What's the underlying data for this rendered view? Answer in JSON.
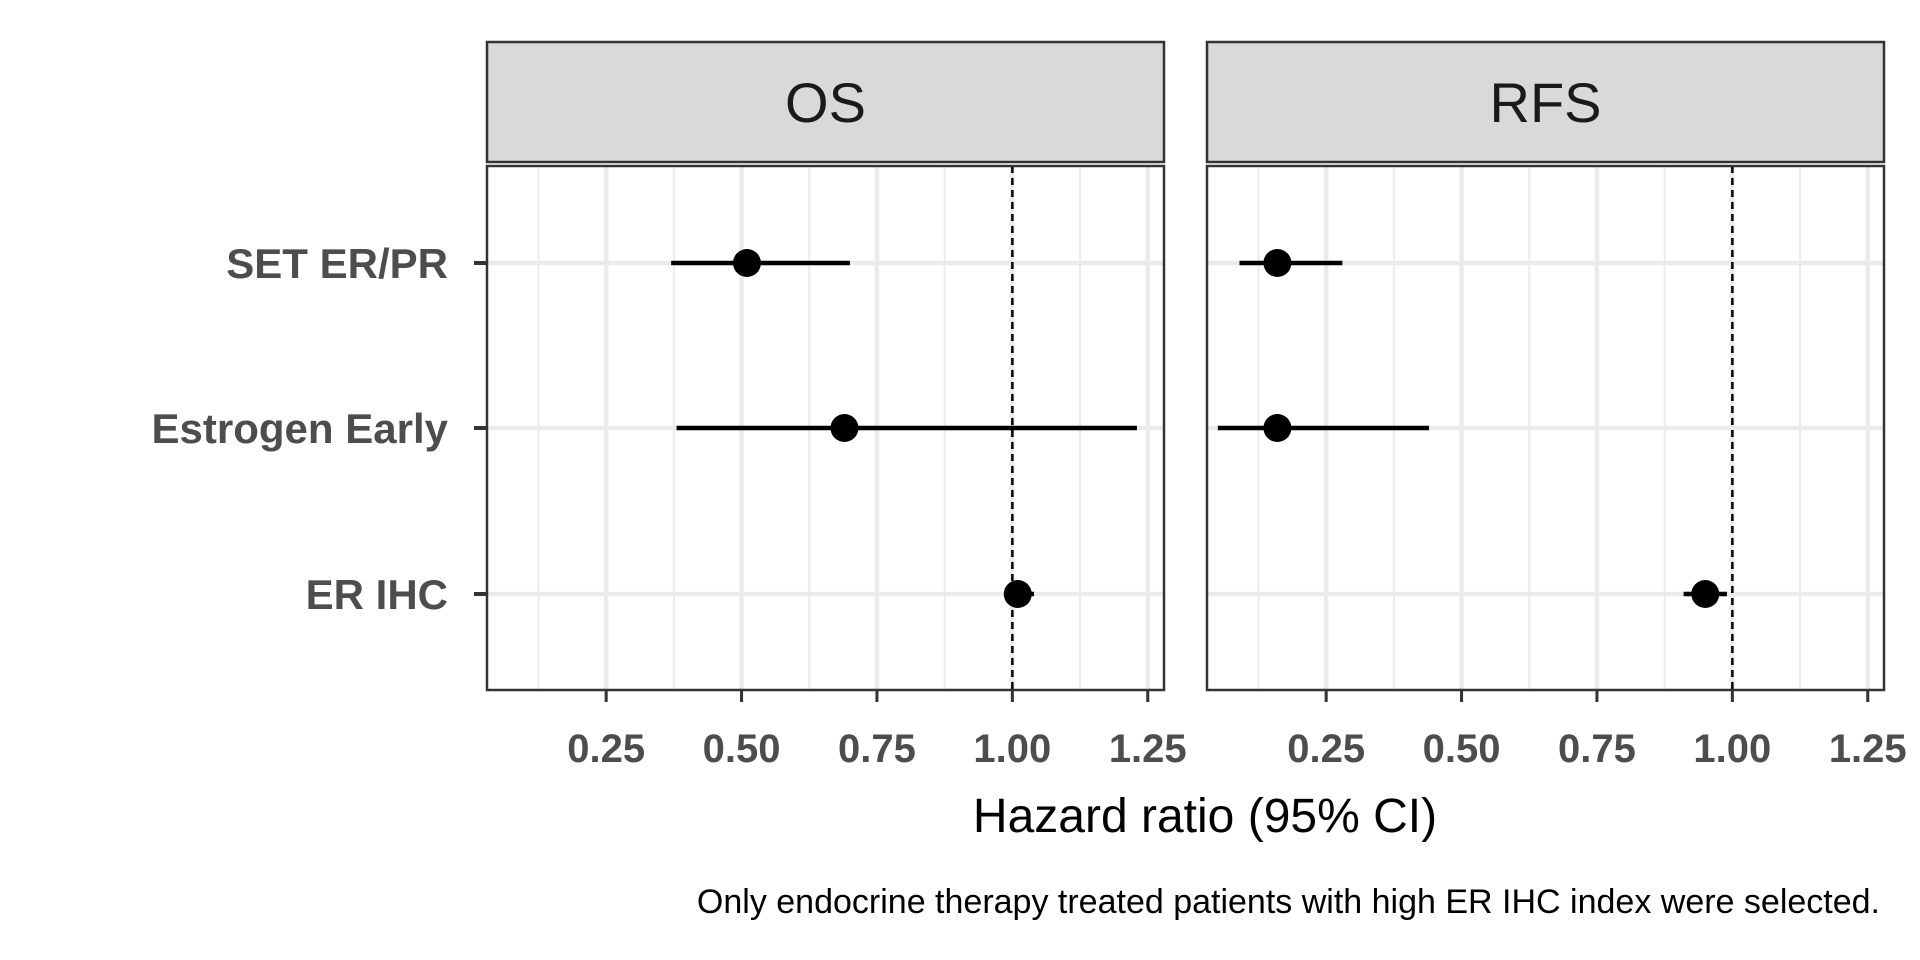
{
  "chart_data": {
    "type": "scatter",
    "subtype": "forest-plot",
    "facets": [
      "OS",
      "RFS"
    ],
    "categories": [
      "SET ER/PR",
      "Estrogen Early",
      "ER IHC"
    ],
    "xlabel": "Hazard ratio (95% CI)",
    "caption": "Only endocrine therapy treated patients with high ER IHC index were selected.",
    "xlim": [
      0.03,
      1.28
    ],
    "x_ticks": [
      0.25,
      0.5,
      0.75,
      1.0,
      1.25
    ],
    "x_tick_labels": [
      "0.25",
      "0.50",
      "0.75",
      "1.00",
      "1.25"
    ],
    "reference_line": 1.0,
    "grid": true,
    "series": [
      {
        "panel": "OS",
        "points": [
          {
            "label": "SET ER/PR",
            "hr": 0.51,
            "lower": 0.37,
            "upper": 0.7
          },
          {
            "label": "Estrogen Early",
            "hr": 0.69,
            "lower": 0.38,
            "upper": 1.23
          },
          {
            "label": "ER IHC",
            "hr": 1.01,
            "lower": 0.99,
            "upper": 1.04
          }
        ]
      },
      {
        "panel": "RFS",
        "points": [
          {
            "label": "SET ER/PR",
            "hr": 0.16,
            "lower": 0.09,
            "upper": 0.28
          },
          {
            "label": "Estrogen Early",
            "hr": 0.16,
            "lower": 0.05,
            "upper": 0.44
          },
          {
            "label": "ER IHC",
            "hr": 0.95,
            "lower": 0.91,
            "upper": 0.99
          }
        ]
      }
    ],
    "colors": {
      "strip_fill": "#d9d9d9",
      "border": "#333333",
      "grid": "#ebebeb",
      "point": "#000000",
      "axis_text": "#4d4d4d"
    }
  }
}
